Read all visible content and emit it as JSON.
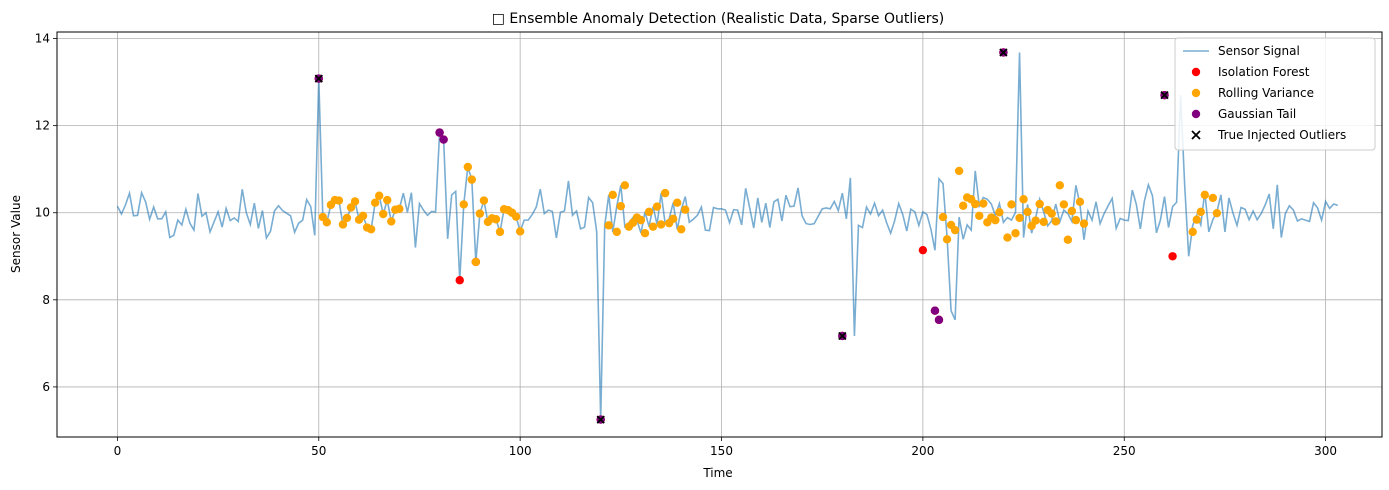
{
  "chart_data": {
    "type": "line",
    "title": "□ Ensemble Anomaly Detection (Realistic Data, Sparse Outliers)",
    "xlabel": "Time",
    "ylabel": "Sensor Value",
    "xlim": [
      -15,
      314
    ],
    "ylim": [
      4.85,
      14.15
    ],
    "xticks": [
      0,
      50,
      100,
      150,
      200,
      250,
      300
    ],
    "yticks": [
      6,
      8,
      10,
      12,
      14
    ],
    "grid": true,
    "legend_position": "top-right",
    "colors": {
      "signal": "#1f77b4",
      "isolation_forest": "#ff0000",
      "rolling_variance": "#ffa500",
      "gaussian_tail": "#800080",
      "true_outliers": "#000000"
    },
    "series": [
      {
        "name": "Sensor Signal",
        "kind": "line",
        "values": [
          10.15,
          9.97,
          10.18,
          10.45,
          9.93,
          9.94,
          10.46,
          10.25,
          9.85,
          10.13,
          9.86,
          9.86,
          10.02,
          9.43,
          9.48,
          9.83,
          9.72,
          10.08,
          9.76,
          9.6,
          10.44,
          9.92,
          10.0,
          9.56,
          9.79,
          10.02,
          9.67,
          10.1,
          9.82,
          9.88,
          9.8,
          10.54,
          10.0,
          9.73,
          10.22,
          9.64,
          10.05,
          9.42,
          9.57,
          10.04,
          10.16,
          10.05,
          9.99,
          9.93,
          9.55,
          9.76,
          9.83,
          10.3,
          10.14,
          9.48,
          13.08,
          9.9,
          9.78,
          10.18,
          10.29,
          10.28,
          9.73,
          9.88,
          10.12,
          10.26,
          9.84,
          9.93,
          9.66,
          9.62,
          10.23,
          10.39,
          9.97,
          10.29,
          9.8,
          10.07,
          10.09,
          10.45,
          10.01,
          10.46,
          9.2,
          10.21,
          10.06,
          9.94,
          10.03,
          10.02,
          11.84,
          11.68,
          9.4,
          10.41,
          10.49,
          8.45,
          10.19,
          11.05,
          10.76,
          8.87,
          9.98,
          10.28,
          9.79,
          9.87,
          9.85,
          9.56,
          10.08,
          10.06,
          10.0,
          9.91,
          9.57,
          9.83,
          9.83,
          9.96,
          10.13,
          10.54,
          9.98,
          10.06,
          10.03,
          9.42,
          10.01,
          10.04,
          10.73,
          9.94,
          10.04,
          9.63,
          9.67,
          10.35,
          10.23,
          9.57,
          5.25,
          9.71,
          10.41,
          9.56,
          10.15,
          10.63,
          9.68,
          9.77,
          9.89,
          9.83,
          9.53,
          10.02,
          9.68,
          10.14,
          9.73,
          10.45,
          9.76,
          9.86,
          10.23,
          9.62,
          10.07,
          10.37,
          9.78,
          9.85,
          9.94,
          10.13,
          9.6,
          9.59,
          10.12,
          10.09,
          10.09,
          10.06,
          9.77,
          10.07,
          10.06,
          9.72,
          10.56,
          10.11,
          9.65,
          10.34,
          9.78,
          10.22,
          9.66,
          10.25,
          10.31,
          9.81,
          10.4,
          10.14,
          10.15,
          10.57,
          9.93,
          9.75,
          9.73,
          9.75,
          9.92,
          10.09,
          10.11,
          10.09,
          10.26,
          10.05,
          10.45,
          9.86,
          10.8,
          7.17,
          9.71,
          9.66,
          10.13,
          9.97,
          10.22,
          9.93,
          10.06,
          9.77,
          9.53,
          9.82,
          10.21,
          9.96,
          9.58,
          10.08,
          10.02,
          9.71,
          10.02,
          9.96,
          9.62,
          9.14,
          10.78,
          10.67,
          9.44,
          7.75,
          7.54,
          9.9,
          9.39,
          9.72,
          9.6,
          10.96,
          10.16,
          10.35,
          10.31,
          10.2,
          9.93,
          10.21,
          9.78,
          9.89,
          9.83,
          10.01,
          13.68,
          9.43,
          10.19,
          9.53,
          9.88,
          10.31,
          10.02,
          9.7,
          9.82,
          10.2,
          9.79,
          10.06,
          9.98,
          9.8,
          10.63,
          10.19,
          9.38,
          10.04,
          9.83,
          10.25,
          9.75,
          9.98,
          10.16,
          10.33,
          9.64,
          9.87,
          9.83,
          9.82,
          10.52,
          10.19,
          9.63,
          10.27,
          10.64,
          10.39,
          9.54,
          9.84,
          10.37,
          9.66,
          10.14,
          10.24,
          12.7,
          10.64,
          9.0,
          9.71,
          9.94,
          9.72,
          10.48,
          9.56,
          9.84,
          10.02,
          10.41,
          9.56,
          10.34,
          9.99,
          9.71,
          10.12,
          10.08,
          9.84,
          10.04,
          9.84,
          9.98,
          10.18,
          10.43,
          9.63,
          10.64,
          9.43,
          9.98,
          10.16,
          10.06,
          9.81,
          9.86,
          9.83,
          9.8,
          10.23,
          10.11,
          9.83,
          10.26,
          10.1,
          10.2,
          10.17
        ]
      },
      {
        "name": "Isolation Forest",
        "kind": "scatter",
        "marker": "circle",
        "points": [
          [
            50,
            13.08
          ],
          [
            80,
            11.84
          ],
          [
            81,
            11.68
          ],
          [
            85,
            8.45
          ],
          [
            89,
            8.87
          ],
          [
            120,
            5.25
          ],
          [
            180,
            7.17
          ],
          [
            200,
            9.14
          ],
          [
            203,
            7.75
          ],
          [
            204,
            7.54
          ],
          [
            220,
            13.68
          ],
          [
            260,
            12.7
          ],
          [
            262,
            9.0
          ]
        ]
      },
      {
        "name": "Rolling Variance",
        "kind": "scatter",
        "marker": "circle",
        "points": [
          [
            51,
            9.9
          ],
          [
            52,
            9.78
          ],
          [
            53,
            10.18
          ],
          [
            54,
            10.29
          ],
          [
            55,
            10.28
          ],
          [
            56,
            9.73
          ],
          [
            57,
            9.88
          ],
          [
            58,
            10.12
          ],
          [
            59,
            10.26
          ],
          [
            60,
            9.84
          ],
          [
            61,
            9.93
          ],
          [
            62,
            9.66
          ],
          [
            63,
            9.62
          ],
          [
            64,
            10.23
          ],
          [
            65,
            10.39
          ],
          [
            66,
            9.97
          ],
          [
            67,
            10.29
          ],
          [
            68,
            9.8
          ],
          [
            69,
            10.07
          ],
          [
            70,
            10.09
          ],
          [
            86,
            10.19
          ],
          [
            87,
            11.05
          ],
          [
            88,
            10.76
          ],
          [
            89,
            8.87
          ],
          [
            90,
            9.98
          ],
          [
            91,
            10.28
          ],
          [
            92,
            9.79
          ],
          [
            93,
            9.87
          ],
          [
            94,
            9.85
          ],
          [
            95,
            9.56
          ],
          [
            96,
            10.08
          ],
          [
            97,
            10.06
          ],
          [
            98,
            10.0
          ],
          [
            99,
            9.91
          ],
          [
            100,
            9.57
          ],
          [
            122,
            9.71
          ],
          [
            123,
            10.41
          ],
          [
            124,
            9.56
          ],
          [
            125,
            10.15
          ],
          [
            126,
            10.63
          ],
          [
            127,
            9.68
          ],
          [
            128,
            9.77
          ],
          [
            129,
            9.89
          ],
          [
            130,
            9.83
          ],
          [
            131,
            9.53
          ],
          [
            132,
            10.02
          ],
          [
            133,
            9.68
          ],
          [
            134,
            10.14
          ],
          [
            135,
            9.73
          ],
          [
            136,
            10.45
          ],
          [
            137,
            9.76
          ],
          [
            138,
            9.86
          ],
          [
            139,
            10.23
          ],
          [
            140,
            9.62
          ],
          [
            141,
            10.07
          ],
          [
            205,
            9.9
          ],
          [
            206,
            9.39
          ],
          [
            207,
            9.72
          ],
          [
            208,
            9.6
          ],
          [
            209,
            10.96
          ],
          [
            210,
            10.16
          ],
          [
            211,
            10.35
          ],
          [
            212,
            10.31
          ],
          [
            213,
            10.2
          ],
          [
            214,
            9.93
          ],
          [
            215,
            10.21
          ],
          [
            216,
            9.78
          ],
          [
            217,
            9.89
          ],
          [
            218,
            9.83
          ],
          [
            219,
            10.01
          ],
          [
            221,
            9.43
          ],
          [
            222,
            10.19
          ],
          [
            223,
            9.53
          ],
          [
            224,
            9.88
          ],
          [
            225,
            10.31
          ],
          [
            226,
            10.02
          ],
          [
            227,
            9.7
          ],
          [
            228,
            9.82
          ],
          [
            229,
            10.2
          ],
          [
            230,
            9.79
          ],
          [
            231,
            10.06
          ],
          [
            232,
            9.98
          ],
          [
            233,
            9.8
          ],
          [
            234,
            10.63
          ],
          [
            235,
            10.19
          ],
          [
            236,
            9.38
          ],
          [
            237,
            10.04
          ],
          [
            238,
            9.83
          ],
          [
            239,
            10.25
          ],
          [
            240,
            9.75
          ],
          [
            267,
            9.56
          ],
          [
            268,
            9.84
          ],
          [
            269,
            10.02
          ],
          [
            270,
            10.41
          ],
          [
            272,
            10.34
          ],
          [
            273,
            9.99
          ]
        ]
      },
      {
        "name": "Gaussian Tail",
        "kind": "scatter",
        "marker": "circle",
        "points": [
          [
            50,
            13.08
          ],
          [
            80,
            11.84
          ],
          [
            81,
            11.68
          ],
          [
            120,
            5.25
          ],
          [
            180,
            7.17
          ],
          [
            203,
            7.75
          ],
          [
            204,
            7.54
          ],
          [
            220,
            13.68
          ],
          [
            260,
            12.7
          ]
        ]
      },
      {
        "name": "True Injected Outliers",
        "kind": "scatter",
        "marker": "x",
        "points": [
          [
            50,
            13.08
          ],
          [
            120,
            5.25
          ],
          [
            180,
            7.17
          ],
          [
            220,
            13.68
          ],
          [
            260,
            12.7
          ]
        ]
      }
    ]
  }
}
